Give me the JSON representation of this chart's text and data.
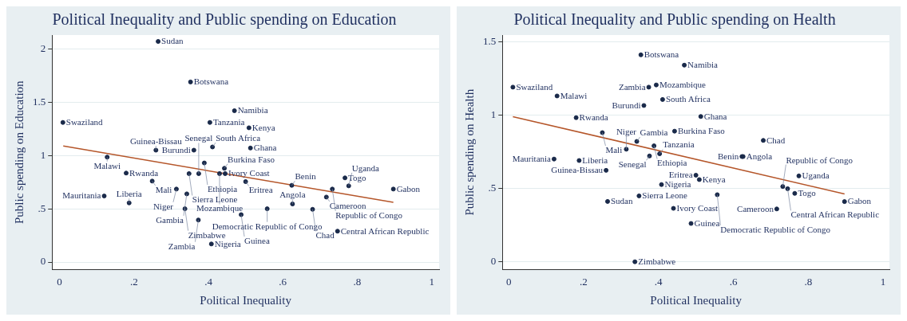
{
  "chart_data": [
    {
      "type": "scatter",
      "title": "Political Inequality and Public spending on Education",
      "xlabel": "Political Inequality",
      "ylabel": "Public spending on Education",
      "xlim": [
        -0.02,
        1.02
      ],
      "ylim": [
        -0.07,
        2.13
      ],
      "xticks": [
        {
          "value": 0,
          "label": "0"
        },
        {
          "value": 0.2,
          "label": ".2"
        },
        {
          "value": 0.4,
          "label": ".4"
        },
        {
          "value": 0.6,
          "label": ".6"
        },
        {
          "value": 0.8,
          "label": ".8"
        },
        {
          "value": 1,
          "label": "1"
        }
      ],
      "yticks": [
        {
          "value": 0,
          "label": "0"
        },
        {
          "value": 0.5,
          "label": ".5"
        },
        {
          "value": 1,
          "label": "1"
        },
        {
          "value": 1.5,
          "label": "1.5"
        },
        {
          "value": 2,
          "label": "2"
        }
      ],
      "grid": "y",
      "legend": false,
      "marker": "circle",
      "series": [
        {
          "type": "scatter",
          "color": "#1a2a4a",
          "x": [
            0.265,
            0.352,
            0.009,
            0.47,
            0.404,
            0.509,
            0.259,
            0.361,
            0.411,
            0.513,
            0.128,
            0.389,
            0.443,
            0.179,
            0.348,
            0.374,
            0.43,
            0.445,
            0.5,
            0.249,
            0.624,
            0.767,
            0.777,
            0.733,
            0.897,
            0.314,
            0.342,
            0.12,
            0.717,
            0.187,
            0.626,
            0.337,
            0.558,
            0.68,
            0.488,
            0.373,
            0.747,
            0.408
          ],
          "values": [
            2.07,
            1.69,
            1.31,
            1.42,
            1.31,
            1.26,
            1.05,
            1.05,
            1.08,
            1.07,
            0.985,
            0.93,
            0.88,
            0.835,
            0.83,
            0.83,
            0.83,
            0.83,
            0.755,
            0.76,
            0.72,
            0.79,
            0.715,
            0.685,
            0.685,
            0.685,
            0.64,
            0.62,
            0.61,
            0.555,
            0.545,
            0.5,
            0.5,
            0.495,
            0.445,
            0.395,
            0.29,
            0.17
          ]
        },
        {
          "type": "line",
          "color": "#b5562a",
          "marker": "none",
          "x": [
            0.01,
            0.897
          ],
          "values": [
            1.09,
            0.56
          ]
        }
      ],
      "annotations": [
        {
          "text": "Sudan",
          "x": 0.265,
          "y": 2.07
        },
        {
          "text": "Botswana",
          "x": 0.352,
          "y": 1.69
        },
        {
          "text": "Swaziland",
          "x": 0.009,
          "y": 1.31
        },
        {
          "text": "Namibia",
          "x": 0.47,
          "y": 1.42
        },
        {
          "text": "Tanzania",
          "x": 0.404,
          "y": 1.31
        },
        {
          "text": "Kenya",
          "x": 0.509,
          "y": 1.26
        },
        {
          "text": "Guinea-Bissau",
          "x": 0.259,
          "y": 1.05
        },
        {
          "text": "Burundi",
          "x": 0.361,
          "y": 1.05
        },
        {
          "text": "South Africa",
          "x": 0.411,
          "y": 1.08
        },
        {
          "text": "Ghana",
          "x": 0.513,
          "y": 1.07
        },
        {
          "text": "Malawi",
          "x": 0.128,
          "y": 0.985
        },
        {
          "text": "Ethiopia",
          "x": 0.389,
          "y": 0.93
        },
        {
          "text": "Burkina Faso",
          "x": 0.443,
          "y": 0.88
        },
        {
          "text": "Rwanda",
          "x": 0.179,
          "y": 0.835
        },
        {
          "text": "Sierra Leone",
          "x": 0.348,
          "y": 0.83
        },
        {
          "text": "Senegal",
          "x": 0.374,
          "y": 0.83
        },
        {
          "text": "Mozambique",
          "x": 0.43,
          "y": 0.83
        },
        {
          "text": "Ivory Coast",
          "x": 0.445,
          "y": 0.83
        },
        {
          "text": "Eritrea",
          "x": 0.5,
          "y": 0.755
        },
        {
          "text": "Mali",
          "x": 0.249,
          "y": 0.76
        },
        {
          "text": "Benin",
          "x": 0.624,
          "y": 0.72
        },
        {
          "text": "Togo",
          "x": 0.767,
          "y": 0.79
        },
        {
          "text": "Uganda",
          "x": 0.777,
          "y": 0.715
        },
        {
          "text": "Republic of Congo",
          "x": 0.733,
          "y": 0.685
        },
        {
          "text": "Gabon",
          "x": 0.897,
          "y": 0.685
        },
        {
          "text": "Niger",
          "x": 0.314,
          "y": 0.685
        },
        {
          "text": "Gambia",
          "x": 0.342,
          "y": 0.64
        },
        {
          "text": "Mauritania",
          "x": 0.12,
          "y": 0.62
        },
        {
          "text": "Cameroon",
          "x": 0.717,
          "y": 0.61
        },
        {
          "text": "Liberia",
          "x": 0.187,
          "y": 0.555
        },
        {
          "text": "Angola",
          "x": 0.626,
          "y": 0.545
        },
        {
          "text": "Zimbabwe",
          "x": 0.337,
          "y": 0.5
        },
        {
          "text": "Democratic Republic of Congo",
          "x": 0.558,
          "y": 0.5
        },
        {
          "text": "Chad",
          "x": 0.68,
          "y": 0.495
        },
        {
          "text": "Guinea",
          "x": 0.488,
          "y": 0.445
        },
        {
          "text": "Zambia",
          "x": 0.373,
          "y": 0.395
        },
        {
          "text": "Central African Republic",
          "x": 0.747,
          "y": 0.29
        },
        {
          "text": "Nigeria",
          "x": 0.408,
          "y": 0.17
        }
      ]
    },
    {
      "type": "scatter",
      "title": "Political Inequality and Public spending on Health",
      "xlabel": "Political Inequality",
      "ylabel": "Public spending on Health",
      "xlim": [
        -0.017,
        1.017
      ],
      "ylim": [
        -0.053,
        1.545
      ],
      "xticks": [
        {
          "value": 0,
          "label": "0"
        },
        {
          "value": 0.2,
          "label": ".2"
        },
        {
          "value": 0.4,
          "label": ".4"
        },
        {
          "value": 0.6,
          "label": ".6"
        },
        {
          "value": 0.8,
          "label": ".8"
        },
        {
          "value": 1,
          "label": "1"
        }
      ],
      "yticks": [
        {
          "value": 0,
          "label": "0"
        },
        {
          "value": 0.5,
          "label": ".5"
        },
        {
          "value": 1,
          "label": "1"
        },
        {
          "value": 1.5,
          "label": "1.5"
        }
      ],
      "grid": "y",
      "legend": false,
      "marker": "circle",
      "series": [
        {
          "type": "scatter",
          "color": "#1a2a4a",
          "x": [
            0.353,
            0.469,
            0.011,
            0.394,
            0.374,
            0.129,
            0.411,
            0.361,
            0.18,
            0.513,
            0.25,
            0.443,
            0.68,
            0.342,
            0.388,
            0.314,
            0.403,
            0.376,
            0.623,
            0.626,
            0.121,
            0.188,
            0.26,
            0.5,
            0.509,
            0.775,
            0.408,
            0.732,
            0.745,
            0.764,
            0.557,
            0.348,
            0.264,
            0.897,
            0.44,
            0.716,
            0.487,
            0.337
          ],
          "values": [
            1.41,
            1.34,
            1.19,
            1.205,
            1.19,
            1.13,
            1.106,
            1.065,
            0.982,
            0.99,
            0.88,
            0.89,
            0.827,
            0.82,
            0.79,
            0.767,
            0.736,
            0.721,
            0.717,
            0.717,
            0.7,
            0.69,
            0.623,
            0.59,
            0.56,
            0.585,
            0.526,
            0.513,
            0.498,
            0.466,
            0.457,
            0.449,
            0.411,
            0.41,
            0.364,
            0.36,
            0.261,
            0
          ]
        },
        {
          "type": "line",
          "color": "#b5562a",
          "marker": "none",
          "x": [
            0.011,
            0.897
          ],
          "values": [
            0.989,
            0.462
          ]
        }
      ],
      "annotations": [
        {
          "text": "Botswana",
          "x": 0.353,
          "y": 1.41
        },
        {
          "text": "Namibia",
          "x": 0.469,
          "y": 1.34
        },
        {
          "text": "Swaziland",
          "x": 0.011,
          "y": 1.19
        },
        {
          "text": "Mozambique",
          "x": 0.394,
          "y": 1.205
        },
        {
          "text": "Zambia",
          "x": 0.374,
          "y": 1.19
        },
        {
          "text": "Malawi",
          "x": 0.129,
          "y": 1.13
        },
        {
          "text": "South Africa",
          "x": 0.411,
          "y": 1.106
        },
        {
          "text": "Burundi",
          "x": 0.361,
          "y": 1.065
        },
        {
          "text": "Rwanda",
          "x": 0.18,
          "y": 0.982
        },
        {
          "text": "Ghana",
          "x": 0.513,
          "y": 0.99
        },
        {
          "text": "Mali",
          "x": 0.25,
          "y": 0.88
        },
        {
          "text": "Burkina Faso",
          "x": 0.443,
          "y": 0.89
        },
        {
          "text": "Chad",
          "x": 0.68,
          "y": 0.827
        },
        {
          "text": "Gambia",
          "x": 0.342,
          "y": 0.82
        },
        {
          "text": "Ethiopia",
          "x": 0.388,
          "y": 0.79
        },
        {
          "text": "Niger",
          "x": 0.314,
          "y": 0.767
        },
        {
          "text": "Tanzania",
          "x": 0.403,
          "y": 0.736
        },
        {
          "text": "Senegal",
          "x": 0.376,
          "y": 0.721
        },
        {
          "text": "Benin",
          "x": 0.623,
          "y": 0.717
        },
        {
          "text": "Angola",
          "x": 0.626,
          "y": 0.717
        },
        {
          "text": "Mauritania",
          "x": 0.121,
          "y": 0.7
        },
        {
          "text": "Liberia",
          "x": 0.188,
          "y": 0.69
        },
        {
          "text": "Guinea-Bissau",
          "x": 0.26,
          "y": 0.623
        },
        {
          "text": "Eritrea",
          "x": 0.5,
          "y": 0.59
        },
        {
          "text": "Kenya",
          "x": 0.509,
          "y": 0.56
        },
        {
          "text": "Uganda",
          "x": 0.775,
          "y": 0.585
        },
        {
          "text": "Nigeria",
          "x": 0.408,
          "y": 0.526
        },
        {
          "text": "Republic of Congo",
          "x": 0.732,
          "y": 0.513
        },
        {
          "text": "Central African Republic",
          "x": 0.745,
          "y": 0.498
        },
        {
          "text": "Togo",
          "x": 0.764,
          "y": 0.466
        },
        {
          "text": "Democratic Republic of Congo",
          "x": 0.557,
          "y": 0.457
        },
        {
          "text": "Sierra Leone",
          "x": 0.348,
          "y": 0.449
        },
        {
          "text": "Sudan",
          "x": 0.264,
          "y": 0.411
        },
        {
          "text": "Gabon",
          "x": 0.897,
          "y": 0.41
        },
        {
          "text": "Ivory Coast",
          "x": 0.44,
          "y": 0.364
        },
        {
          "text": "Cameroon",
          "x": 0.716,
          "y": 0.36
        },
        {
          "text": "Guinea",
          "x": 0.487,
          "y": 0.261
        },
        {
          "text": "Zimbabwe",
          "x": 0.337,
          "y": 0
        }
      ]
    }
  ]
}
